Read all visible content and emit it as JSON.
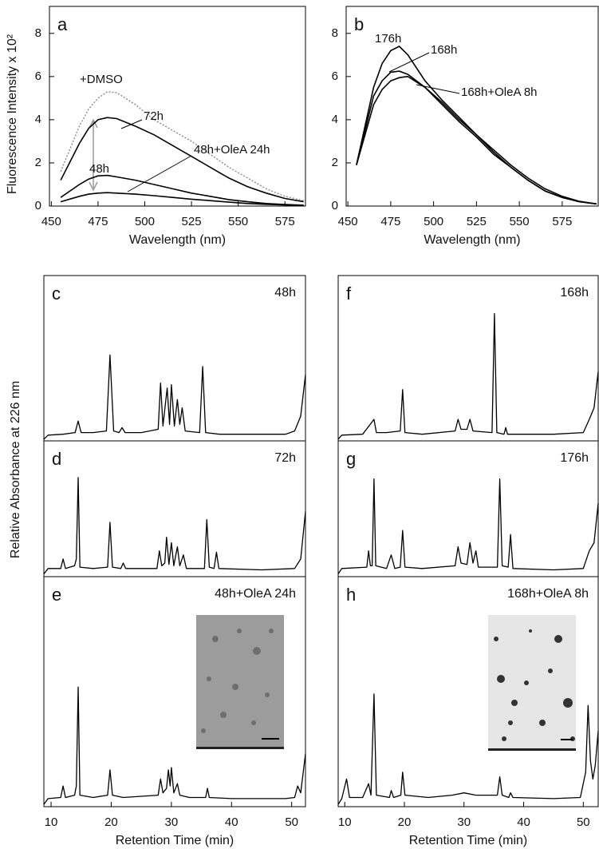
{
  "chart_data": [
    {
      "type": "line",
      "panel_label": "a",
      "ylabel": "Fluorescence Intensity x 10²",
      "xlabel": "Wavelength (nm)",
      "x": [
        455,
        465,
        470,
        475,
        480,
        485,
        495,
        505,
        515,
        525,
        535,
        545,
        555,
        565,
        575,
        585
      ],
      "xlim": [
        449,
        586
      ],
      "xticks": [
        450,
        475,
        500,
        525,
        550,
        575
      ],
      "ylim": [
        0,
        9.25
      ],
      "yticks": [
        0,
        2,
        4,
        6,
        8
      ],
      "series": [
        {
          "name": "+DMSO",
          "color": "#8a8a8a",
          "style": "dotted",
          "values": [
            1.6,
            3.7,
            4.5,
            5.0,
            5.3,
            5.25,
            4.7,
            4.0,
            3.5,
            3.0,
            2.4,
            1.8,
            1.3,
            0.8,
            0.45,
            0.25
          ]
        },
        {
          "name": "72h",
          "color": "#000000",
          "style": "solid",
          "values": [
            1.2,
            2.9,
            3.6,
            4.0,
            4.1,
            4.05,
            3.7,
            3.3,
            2.8,
            2.3,
            1.8,
            1.3,
            0.9,
            0.6,
            0.35,
            0.2
          ]
        },
        {
          "name": "48h",
          "color": "#000000",
          "style": "solid",
          "values": [
            0.4,
            1.0,
            1.25,
            1.4,
            1.42,
            1.35,
            1.2,
            1.0,
            0.8,
            0.6,
            0.45,
            0.3,
            0.2,
            0.12,
            0.07,
            0.04
          ]
        },
        {
          "name": "48h+OleA 24h",
          "color": "#000000",
          "style": "solid",
          "values": [
            0.2,
            0.45,
            0.55,
            0.6,
            0.62,
            0.6,
            0.55,
            0.48,
            0.4,
            0.32,
            0.25,
            0.18,
            0.12,
            0.08,
            0.05,
            0.03
          ]
        }
      ]
    },
    {
      "type": "line",
      "panel_label": "b",
      "xlabel": "Wavelength (nm)",
      "x": [
        455,
        465,
        470,
        475,
        480,
        485,
        495,
        505,
        515,
        525,
        535,
        545,
        555,
        565,
        575,
        585,
        595
      ],
      "xlim": [
        449,
        596
      ],
      "xticks": [
        450,
        475,
        500,
        525,
        550,
        575
      ],
      "ylim": [
        0,
        9.25
      ],
      "yticks": [
        0,
        2,
        4,
        6,
        8
      ],
      "series": [
        {
          "name": "176h",
          "color": "#000000",
          "style": "solid",
          "values": [
            1.9,
            5.5,
            6.6,
            7.2,
            7.4,
            7.0,
            5.8,
            4.9,
            4.1,
            3.3,
            2.5,
            1.8,
            1.2,
            0.7,
            0.4,
            0.2,
            0.1
          ]
        },
        {
          "name": "168h",
          "color": "#000000",
          "style": "solid",
          "values": [
            1.9,
            5.1,
            5.8,
            6.2,
            6.25,
            6.1,
            5.5,
            4.7,
            3.9,
            3.2,
            2.4,
            1.8,
            1.2,
            0.7,
            0.4,
            0.2,
            0.1
          ]
        },
        {
          "name": "168h+OleA 8h",
          "color": "#000000",
          "style": "solid",
          "values": [
            1.9,
            4.7,
            5.4,
            5.8,
            5.95,
            6.0,
            5.5,
            4.8,
            4.0,
            3.3,
            2.6,
            1.9,
            1.3,
            0.8,
            0.45,
            0.22,
            0.1
          ]
        }
      ]
    },
    {
      "type": "line",
      "panel_label": "c",
      "title": "48h",
      "ylabel": "Relative Absorbance at 226 nm",
      "color": "#000000",
      "xlim": [
        8.8,
        52.3
      ],
      "ylim": [
        0,
        100
      ],
      "x": [
        8.8,
        9.5,
        12,
        14,
        14.5,
        15,
        17,
        19.2,
        19.8,
        20.4,
        21.3,
        21.8,
        22.3,
        25,
        27.8,
        28.2,
        28.6,
        29.3,
        29.7,
        30,
        30.5,
        31,
        31.4,
        31.8,
        32.3,
        34.7,
        35.2,
        35.7,
        38,
        45,
        49,
        50.5,
        51.5,
        52.3
      ],
      "values": [
        1,
        3.5,
        4,
        5,
        12,
        5,
        5,
        6,
        52,
        6,
        5,
        8,
        5,
        5,
        7,
        35,
        9,
        32,
        10,
        34,
        9,
        25,
        10,
        20,
        6,
        5,
        45,
        5,
        4,
        4,
        4,
        6,
        15,
        40
      ]
    },
    {
      "type": "line",
      "panel_label": "d",
      "title": "72h",
      "color": "#000000",
      "xlim": [
        8.8,
        52.3
      ],
      "ylim": [
        0,
        100
      ],
      "x": [
        8.8,
        9.5,
        11.6,
        12,
        12.4,
        13.9,
        14.2,
        14.5,
        14.8,
        17,
        19.4,
        19.8,
        20.2,
        21.6,
        22,
        22.4,
        27.6,
        28,
        28.4,
        28.9,
        29.2,
        29.6,
        30,
        30.4,
        31,
        31.4,
        32,
        32.5,
        35.5,
        35.9,
        36.3,
        37.1,
        37.5,
        37.9,
        45,
        50.5,
        51.5,
        52.3
      ],
      "values": [
        2,
        6,
        6,
        13,
        6,
        8,
        13,
        73,
        7,
        6,
        7,
        40,
        7,
        6,
        10,
        6,
        6,
        19,
        8,
        10,
        29,
        9,
        25,
        8,
        22,
        8,
        16,
        6,
        6,
        42,
        7,
        6,
        18,
        6,
        5,
        6,
        13,
        48
      ]
    },
    {
      "type": "line",
      "panel_label": "e",
      "title": "48h+OleA 24h",
      "xlabel": "Retention Time (min)",
      "color": "#000000",
      "xlim": [
        8.8,
        52.3
      ],
      "xticks": [
        10,
        20,
        30,
        40,
        50
      ],
      "ylim": [
        0,
        100
      ],
      "x": [
        8.8,
        9.5,
        11.6,
        12,
        12.4,
        13.9,
        14.2,
        14.5,
        14.8,
        17,
        19.4,
        19.8,
        20.2,
        22,
        27.8,
        28.2,
        28.6,
        29.2,
        29.5,
        29.8,
        30,
        30.4,
        31,
        31.4,
        33,
        35.7,
        36,
        36.3,
        40,
        49,
        50.5,
        51,
        51.5,
        52.3
      ],
      "values": [
        1,
        3.5,
        4,
        9,
        4,
        5,
        9,
        52,
        5,
        4,
        5,
        16,
        5,
        4,
        5,
        12,
        6,
        8,
        16,
        9,
        17,
        6,
        10,
        5,
        4,
        4,
        8,
        4,
        3.5,
        3.5,
        4,
        9,
        6,
        23
      ]
    },
    {
      "type": "line",
      "panel_label": "f",
      "title": "168h",
      "color": "#000000",
      "xlim": [
        8.9,
        52.5
      ],
      "ylim": [
        0,
        100
      ],
      "x": [
        8.9,
        9.5,
        13,
        14.9,
        15.3,
        17,
        19.3,
        19.7,
        20.1,
        23,
        28.5,
        29,
        29.5,
        30.5,
        31,
        31.5,
        34.7,
        35.1,
        35.5,
        36.7,
        37,
        37.3,
        45,
        50,
        51,
        51.8,
        52.5
      ],
      "values": [
        1,
        3.5,
        4,
        13,
        5,
        5,
        6,
        31,
        5,
        4,
        6,
        13,
        7,
        7,
        13,
        6,
        5,
        77,
        5,
        4,
        8,
        4,
        4,
        5,
        13,
        20,
        42
      ]
    },
    {
      "type": "line",
      "panel_label": "g",
      "title": "176h",
      "color": "#000000",
      "xlim": [
        8.9,
        52.5
      ],
      "ylim": [
        0,
        100
      ],
      "x": [
        8.9,
        9.5,
        13.7,
        14,
        14.3,
        14.6,
        14.9,
        15.2,
        17,
        17.8,
        18.4,
        19.3,
        19.7,
        20.1,
        23,
        28.5,
        29,
        29.5,
        30.5,
        31,
        31.5,
        32,
        32.4,
        35.6,
        36,
        36.4,
        37.4,
        37.8,
        38.2,
        45,
        50,
        51,
        51.8,
        52.5
      ],
      "values": [
        2,
        6,
        7,
        19,
        8,
        8,
        72,
        8,
        6,
        16,
        6,
        7,
        34,
        7,
        6,
        8,
        22,
        10,
        9,
        25,
        10,
        19,
        7,
        7,
        72,
        8,
        7,
        31,
        6,
        5,
        6,
        19,
        25,
        54
      ]
    },
    {
      "type": "line",
      "panel_label": "h",
      "title": "168h+OleA 8h",
      "xlabel": "Retention Time (min)",
      "color": "#000000",
      "xlim": [
        8.9,
        52.5
      ],
      "xticks": [
        10,
        20,
        30,
        40,
        50
      ],
      "ylim": [
        0,
        100
      ],
      "x": [
        8.9,
        9.5,
        10.3,
        10.8,
        13,
        14,
        14.4,
        14.9,
        15.3,
        17.5,
        17.8,
        18.2,
        19.4,
        19.7,
        20.1,
        24,
        28,
        30,
        32,
        35.6,
        36,
        36.4,
        37.5,
        37.8,
        38.2,
        45,
        49.5,
        50.4,
        50.8,
        51.2,
        51.6,
        52,
        52.5
      ],
      "values": [
        1,
        3.5,
        12,
        4,
        4,
        10,
        5,
        49,
        5,
        4,
        7,
        4,
        5,
        15,
        5,
        4,
        5,
        6,
        5,
        5,
        13,
        5,
        4,
        6,
        4,
        3.5,
        4,
        15,
        44,
        20,
        12,
        18,
        33
      ]
    }
  ]
}
